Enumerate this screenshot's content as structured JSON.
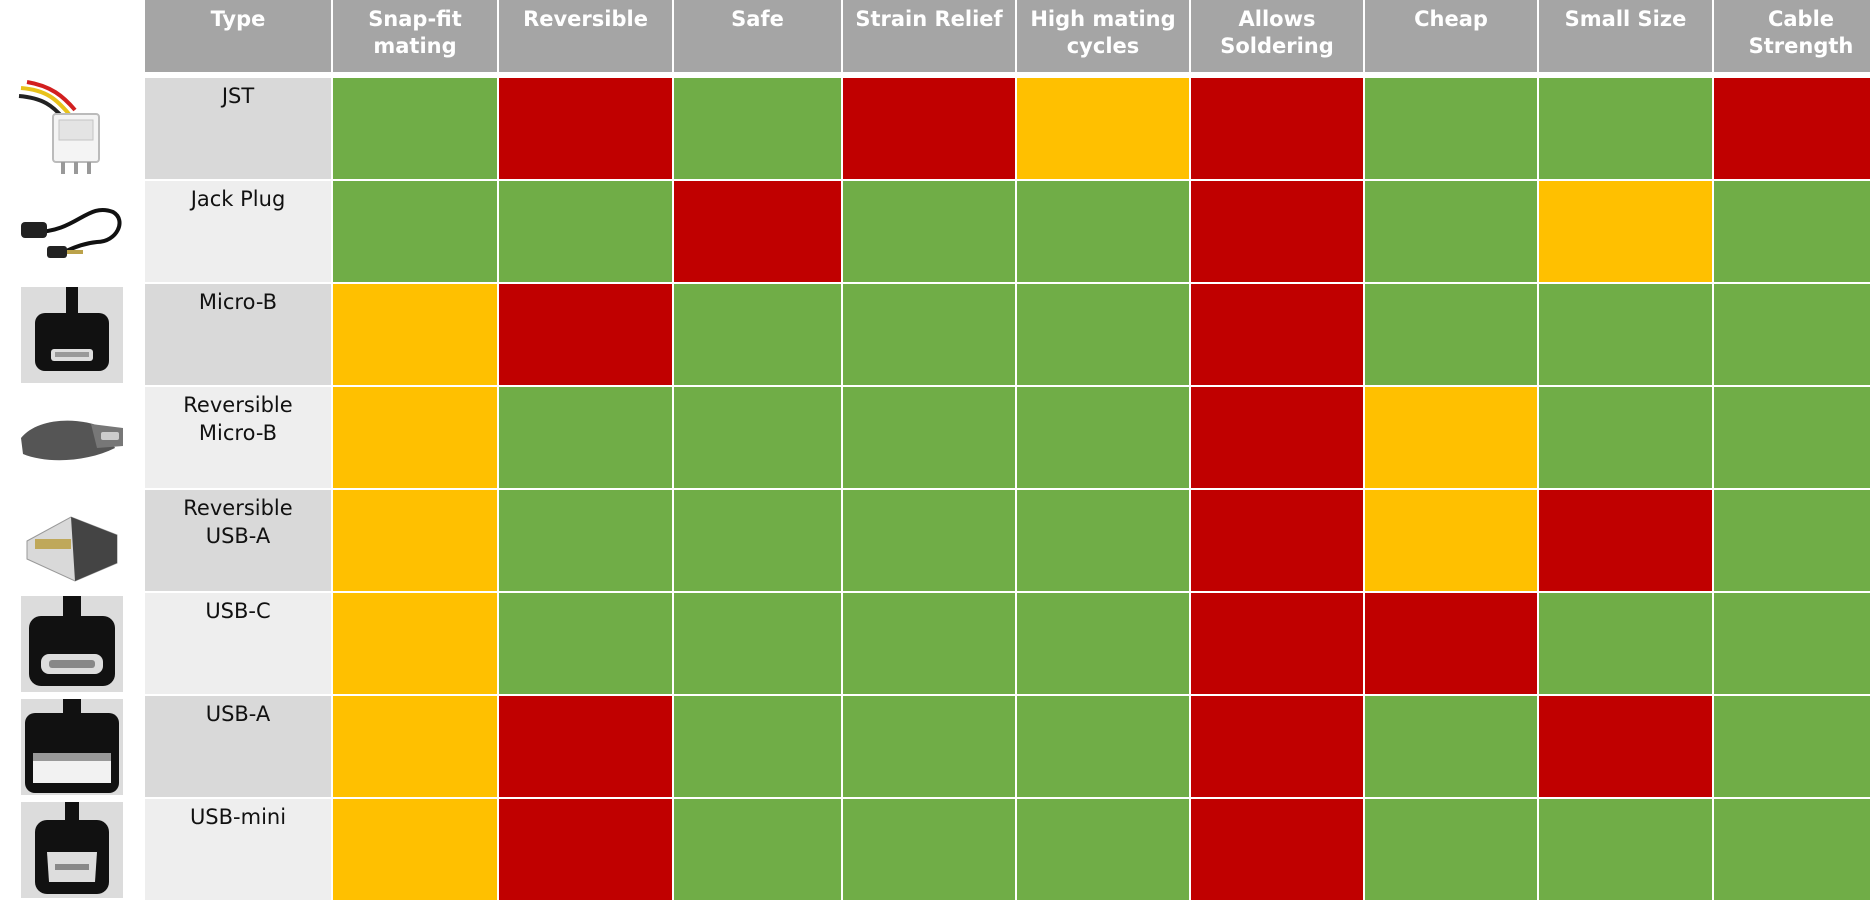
{
  "table": {
    "headers": [
      "Type",
      "Snap-fit\nmating",
      "Reversible",
      "Safe",
      "Strain Relief",
      "High mating\ncycles",
      "Allows\nSoldering",
      "Cheap",
      "Small Size",
      "Cable\nStrength"
    ],
    "rating_colors": {
      "good": "#70ad47",
      "ok": "#ffc000",
      "bad": "#c00000"
    },
    "header_color": "#a5a5a5",
    "rows": [
      {
        "type": "JST",
        "icon": "jst-connector-icon",
        "ratings": [
          "good",
          "bad",
          "good",
          "bad",
          "ok",
          "bad",
          "good",
          "good",
          "bad"
        ]
      },
      {
        "type": "Jack Plug",
        "icon": "jack-plug-icon",
        "ratings": [
          "good",
          "good",
          "bad",
          "good",
          "good",
          "bad",
          "good",
          "ok",
          "good"
        ]
      },
      {
        "type": "Micro-B",
        "icon": "micro-b-connector-icon",
        "ratings": [
          "ok",
          "bad",
          "good",
          "good",
          "good",
          "bad",
          "good",
          "good",
          "good"
        ]
      },
      {
        "type": "Reversible\nMicro-B",
        "icon": "reversible-micro-b-connector-icon",
        "ratings": [
          "ok",
          "good",
          "good",
          "good",
          "good",
          "bad",
          "ok",
          "good",
          "good"
        ]
      },
      {
        "type": "Reversible\nUSB-A",
        "icon": "reversible-usb-a-connector-icon",
        "ratings": [
          "ok",
          "good",
          "good",
          "good",
          "good",
          "bad",
          "ok",
          "bad",
          "good"
        ]
      },
      {
        "type": "USB-C",
        "icon": "usb-c-connector-icon",
        "ratings": [
          "ok",
          "good",
          "good",
          "good",
          "good",
          "bad",
          "bad",
          "good",
          "good"
        ]
      },
      {
        "type": "USB-A",
        "icon": "usb-a-connector-icon",
        "ratings": [
          "ok",
          "bad",
          "good",
          "good",
          "good",
          "bad",
          "good",
          "bad",
          "good"
        ]
      },
      {
        "type": "USB-mini",
        "icon": "usb-mini-connector-icon",
        "ratings": [
          "ok",
          "bad",
          "good",
          "good",
          "good",
          "bad",
          "good",
          "good",
          "good"
        ]
      }
    ]
  }
}
